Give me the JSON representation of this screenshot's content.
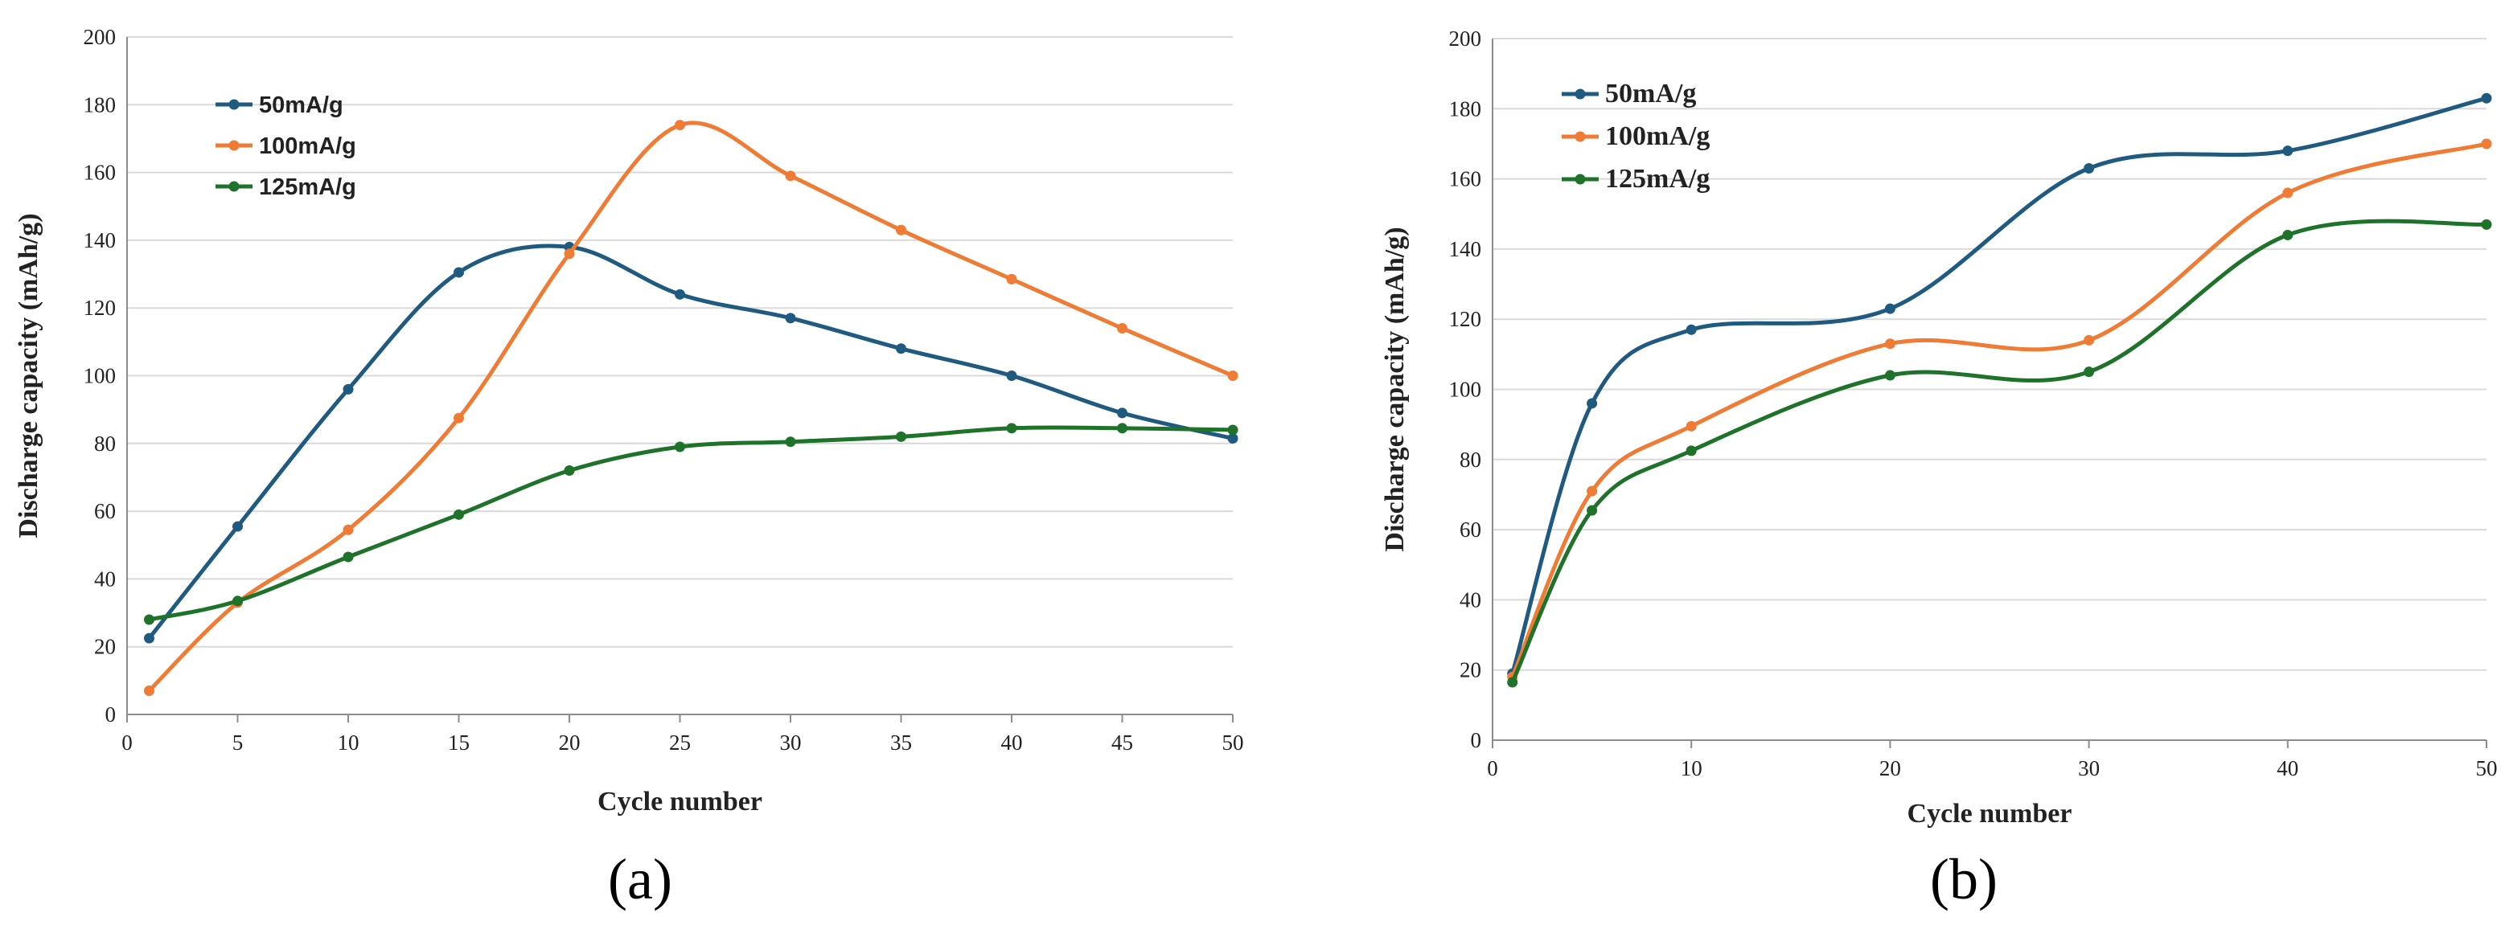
{
  "figure": {
    "colors": {
      "s50": "#1f5a80",
      "s100": "#ef7b34",
      "s125": "#1e7229",
      "grid": "#d9d9d9",
      "axis": "#8c8c8c"
    }
  },
  "chart_data": [
    {
      "type": "line",
      "panel_label": "(a)",
      "title": "",
      "xlabel": "Cycle number",
      "ylabel": "Discharge capacity (mAh/g)",
      "xlim": [
        0,
        50
      ],
      "ylim": [
        0,
        200
      ],
      "xticks": [
        0,
        5,
        10,
        15,
        20,
        25,
        30,
        35,
        40,
        45,
        50
      ],
      "yticks": [
        0,
        20,
        40,
        60,
        80,
        100,
        120,
        140,
        160,
        180,
        200
      ],
      "grid": "horizontal",
      "legend_position": "top-left",
      "x": [
        1,
        5,
        10,
        15,
        20,
        25,
        30,
        35,
        40,
        45,
        50
      ],
      "series": [
        {
          "name": "50mA/g",
          "color": "#1f5a80",
          "values": [
            22.5,
            55.5,
            96,
            130.5,
            138,
            124,
            117,
            108,
            100,
            89,
            81.5
          ]
        },
        {
          "name": "100mA/g",
          "color": "#ef7b34",
          "values": [
            7,
            33,
            54.5,
            87.5,
            136,
            174,
            159,
            143,
            128.5,
            114,
            100
          ]
        },
        {
          "name": "125mA/g",
          "color": "#1e7229",
          "values": [
            28,
            33.5,
            46.5,
            59,
            72,
            79,
            80.5,
            82,
            84.5,
            84.5,
            84
          ]
        }
      ]
    },
    {
      "type": "line",
      "panel_label": "(b)",
      "title": "",
      "xlabel": "Cycle number",
      "ylabel": "Discharge capacity (mAh/g)",
      "xlim": [
        0,
        50
      ],
      "ylim": [
        0,
        200
      ],
      "xticks": [
        0,
        10,
        20,
        30,
        40,
        50
      ],
      "yticks": [
        0,
        20,
        40,
        60,
        80,
        100,
        120,
        140,
        160,
        180,
        200
      ],
      "grid": "horizontal",
      "legend_position": "top-left",
      "x": [
        1,
        5,
        10,
        20,
        30,
        40,
        50
      ],
      "series": [
        {
          "name": "50mA/g",
          "color": "#1f5a80",
          "values": [
            19,
            96,
            117,
            123,
            163,
            168,
            183
          ]
        },
        {
          "name": "100mA/g",
          "color": "#ef7b34",
          "values": [
            18,
            71,
            89.5,
            113,
            114,
            156,
            170
          ]
        },
        {
          "name": "125mA/g",
          "color": "#1e7229",
          "values": [
            16.5,
            65.5,
            82.5,
            104,
            105,
            144,
            147
          ]
        }
      ]
    }
  ]
}
